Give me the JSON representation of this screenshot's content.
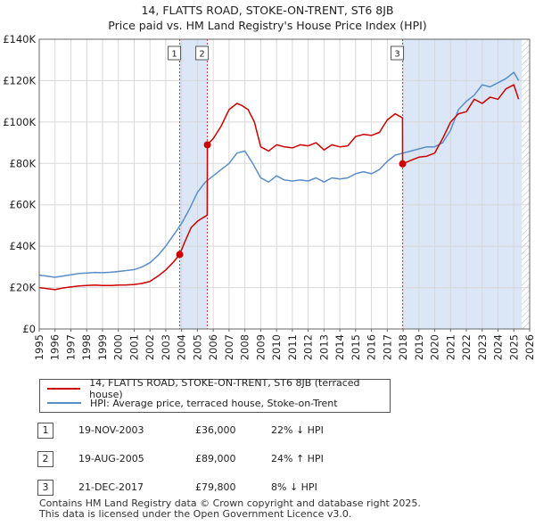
{
  "title": "14, FLATTS ROAD, STOKE-ON-TRENT, ST6 8JB",
  "subtitle": "Price paid vs. HM Land Registry's House Price Index (HPI)",
  "legend": {
    "property_label": "14, FLATTS ROAD, STOKE-ON-TRENT, ST6 8JB (terraced house)",
    "hpi_label": "HPI: Average price, terraced house, Stoke-on-Trent"
  },
  "colors": {
    "property": "#cc0000",
    "hpi": "#5b8ec7",
    "band": "#dbe6f6",
    "vline": "#cc3333",
    "grid": "#d8d8d8"
  },
  "transactions": [
    {
      "num": "1",
      "date": "19-NOV-2003",
      "price": "£36,000",
      "hpi": "22% ↓ HPI"
    },
    {
      "num": "2",
      "date": "19-AUG-2005",
      "price": "£89,000",
      "hpi": "24% ↑ HPI"
    },
    {
      "num": "3",
      "date": "21-DEC-2017",
      "price": "£79,800",
      "hpi": "8% ↓ HPI"
    }
  ],
  "footer": {
    "line1": "Contains HM Land Registry data © Crown copyright and database right 2025.",
    "line2": "This data is licensed under the Open Government Licence v3.0."
  },
  "chart_data": {
    "type": "line",
    "title": "14, FLATTS ROAD, STOKE-ON-TRENT, ST6 8JB",
    "subtitle": "Price paid vs. HM Land Registry's House Price Index (HPI)",
    "xlabel": "",
    "ylabel": "",
    "xlim": [
      1995,
      2026
    ],
    "ylim": [
      0,
      140000
    ],
    "x_ticks": [
      1995,
      1996,
      1997,
      1998,
      1999,
      2000,
      2001,
      2002,
      2003,
      2004,
      2005,
      2006,
      2007,
      2008,
      2009,
      2010,
      2011,
      2012,
      2013,
      2014,
      2015,
      2016,
      2017,
      2018,
      2019,
      2020,
      2021,
      2022,
      2023,
      2024,
      2025,
      2026
    ],
    "y_ticks": [
      0,
      20000,
      40000,
      60000,
      80000,
      100000,
      120000,
      140000
    ],
    "y_tick_labels": [
      "£0",
      "£20K",
      "£40K",
      "£60K",
      "£80K",
      "£100K",
      "£120K",
      "£140K"
    ],
    "grid": true,
    "shaded_periods": [
      [
        2003.88,
        2005.63
      ],
      [
        2017.97,
        2025.5
      ]
    ],
    "future_hatch_from": 2025.5,
    "sale_markers": [
      {
        "label": "1",
        "x": 2003.88,
        "y": 36000
      },
      {
        "label": "2",
        "x": 2005.63,
        "y": 89000
      },
      {
        "label": "3",
        "x": 2017.97,
        "y": 79800
      }
    ],
    "series": [
      {
        "name": "14, FLATTS ROAD, STOKE-ON-TRENT, ST6 8JB (terraced house)",
        "color": "#cc0000",
        "x": [
          1995.0,
          1995.5,
          1996.0,
          1996.5,
          1997.0,
          1997.5,
          1998.0,
          1998.5,
          1999.0,
          1999.5,
          2000.0,
          2000.5,
          2001.0,
          2001.5,
          2002.0,
          2002.5,
          2003.0,
          2003.5,
          2003.88,
          2004.2,
          2004.6,
          2005.0,
          2005.3,
          2005.62,
          2005.63,
          2006.0,
          2006.5,
          2007.0,
          2007.5,
          2007.8,
          2008.2,
          2008.6,
          2009.0,
          2009.5,
          2010.0,
          2010.5,
          2011.0,
          2011.5,
          2012.0,
          2012.5,
          2013.0,
          2013.5,
          2014.0,
          2014.5,
          2015.0,
          2015.5,
          2016.0,
          2016.5,
          2017.0,
          2017.5,
          2017.96,
          2017.97,
          2018.5,
          2019.0,
          2019.5,
          2020.0,
          2020.5,
          2021.0,
          2021.5,
          2022.0,
          2022.5,
          2023.0,
          2023.5,
          2024.0,
          2024.5,
          2025.0,
          2025.3
        ],
        "y": [
          20000,
          19500,
          19000,
          19800,
          20300,
          20800,
          21000,
          21200,
          21000,
          21000,
          21200,
          21300,
          21500,
          22000,
          23000,
          25500,
          28500,
          32500,
          36000,
          42000,
          49000,
          52000,
          53500,
          55000,
          89000,
          92000,
          98000,
          106000,
          109000,
          108000,
          106000,
          100000,
          88000,
          86000,
          89000,
          88000,
          87500,
          89000,
          88500,
          90000,
          86500,
          89000,
          88000,
          88500,
          93000,
          94000,
          93500,
          95000,
          101000,
          104000,
          102000,
          79800,
          81500,
          83000,
          83500,
          85000,
          92000,
          100000,
          104000,
          105000,
          111000,
          109000,
          112000,
          111000,
          116000,
          118000,
          111000
        ]
      },
      {
        "name": "HPI: Average price, terraced house, Stoke-on-Trent",
        "color": "#5b8ec7",
        "x": [
          1995.0,
          1995.5,
          1996.0,
          1996.5,
          1997.0,
          1997.5,
          1998.0,
          1998.5,
          1999.0,
          1999.5,
          2000.0,
          2000.5,
          2001.0,
          2001.5,
          2002.0,
          2002.5,
          2003.0,
          2003.5,
          2004.0,
          2004.5,
          2005.0,
          2005.5,
          2006.0,
          2006.5,
          2007.0,
          2007.5,
          2008.0,
          2008.5,
          2009.0,
          2009.5,
          2010.0,
          2010.5,
          2011.0,
          2011.5,
          2012.0,
          2012.5,
          2013.0,
          2013.5,
          2014.0,
          2014.5,
          2015.0,
          2015.5,
          2016.0,
          2016.5,
          2017.0,
          2017.5,
          2018.0,
          2018.5,
          2019.0,
          2019.5,
          2020.0,
          2020.5,
          2021.0,
          2021.5,
          2022.0,
          2022.5,
          2023.0,
          2023.5,
          2024.0,
          2024.5,
          2025.0,
          2025.3
        ],
        "y": [
          26000,
          25500,
          25000,
          25600,
          26200,
          26800,
          27000,
          27300,
          27200,
          27400,
          27800,
          28200,
          28700,
          30000,
          32000,
          35500,
          40000,
          45500,
          51000,
          58000,
          66000,
          71000,
          74000,
          77000,
          80000,
          85000,
          86000,
          80000,
          73000,
          71000,
          74000,
          72000,
          71500,
          72000,
          71500,
          73000,
          71000,
          73000,
          72500,
          73000,
          75000,
          76000,
          75000,
          77000,
          81000,
          84000,
          85000,
          86000,
          87000,
          88000,
          88000,
          90000,
          96000,
          106000,
          110000,
          113000,
          118000,
          117000,
          119000,
          121000,
          124000,
          120000
        ]
      }
    ]
  }
}
